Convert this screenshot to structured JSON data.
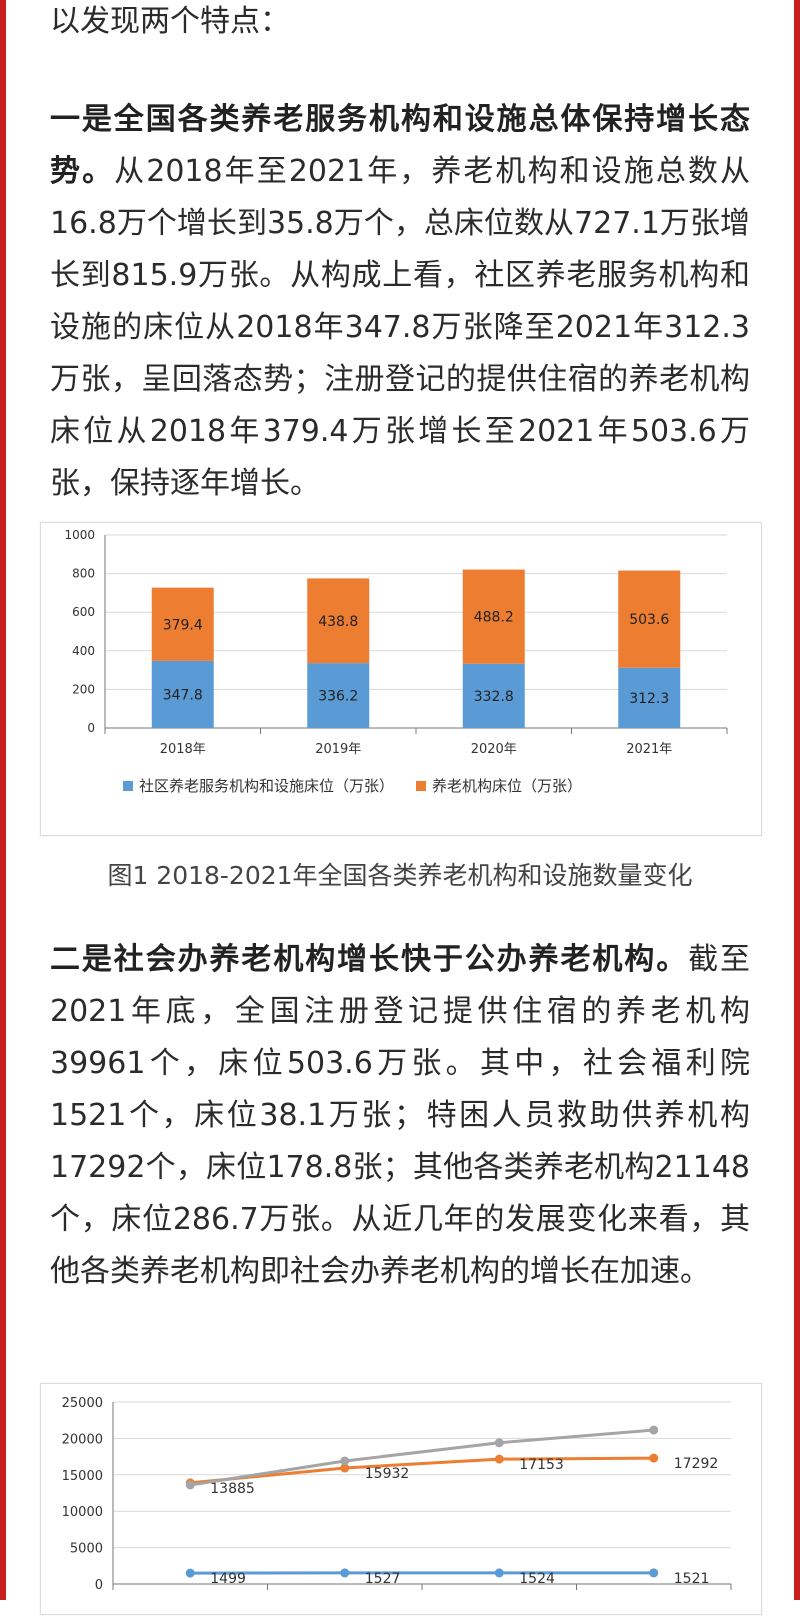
{
  "article": {
    "intro": "以发现两个特点：",
    "para1_bold": "一是全国各类养老服务机构和设施总体保持增长态势。",
    "para1_text": "从2018年至2021年，养老机构和设施总数从16.8万个增长到35.8万个，总床位数从727.1万张增长到815.9万张。从构成上看，社区养老服务机构和设施的床位从2018年347.8万张降至2021年312.3万张，呈回落态势；注册登记的提供住宿的养老机构床位从2018年379.4万张增长至2021年503.6万张，保持逐年增长。",
    "caption1": "图1 2018-2021年全国各类养老机构和设施数量变化",
    "para2_bold": "二是社会办养老机构增长快于公办养老机构。",
    "para2_text": "截至2021年底，全国注册登记提供住宿的养老机构39961个，床位503.6万张。其中，社会福利院1521个，床位38.1万张；特困人员救助供养机构17292个，床位178.8张；其他各类养老机构21148个，床位286.7万张。从近几年的发展变化来看，其他各类养老机构即社会办养老机构的增长在加速。"
  },
  "colors": {
    "accent_edge": "#c8201e",
    "blue": "#5b9bd5",
    "orange": "#ed7d31",
    "gray": "#a5a5a5"
  },
  "chart_data": [
    {
      "type": "bar",
      "stacked": true,
      "title": "",
      "categories": [
        "2018年",
        "2019年",
        "2020年",
        "2021年"
      ],
      "series": [
        {
          "name": "社区养老服务机构和设施床位（万张）",
          "values": [
            347.8,
            336.2,
            332.8,
            312.3
          ],
          "color": "#5b9bd5"
        },
        {
          "name": "养老机构床位（万张）",
          "values": [
            379.4,
            438.8,
            488.2,
            503.6
          ],
          "color": "#ed7d31"
        }
      ],
      "ylim": [
        0,
        1000
      ],
      "yticks": [
        0,
        200,
        400,
        600,
        800,
        1000
      ],
      "grid": true,
      "legend": "bottom"
    },
    {
      "type": "line",
      "title": "",
      "series": [
        {
          "values": [
            1499,
            1527,
            1524,
            1521
          ],
          "labels": [
            "1499",
            "1527",
            "1524",
            "1521"
          ],
          "color": "#5b9bd5"
        },
        {
          "values": [
            13885,
            15932,
            17153,
            17292
          ],
          "labels": [
            "13885",
            "15932",
            "17153",
            "17292"
          ],
          "color": "#ed7d31"
        },
        {
          "values": [
            13600,
            16900,
            19400,
            21148
          ],
          "color": "#a5a5a5"
        }
      ],
      "ylim": [
        0,
        25000
      ],
      "yticks": [
        0,
        5000,
        10000,
        15000,
        20000,
        25000
      ],
      "grid": true
    }
  ]
}
